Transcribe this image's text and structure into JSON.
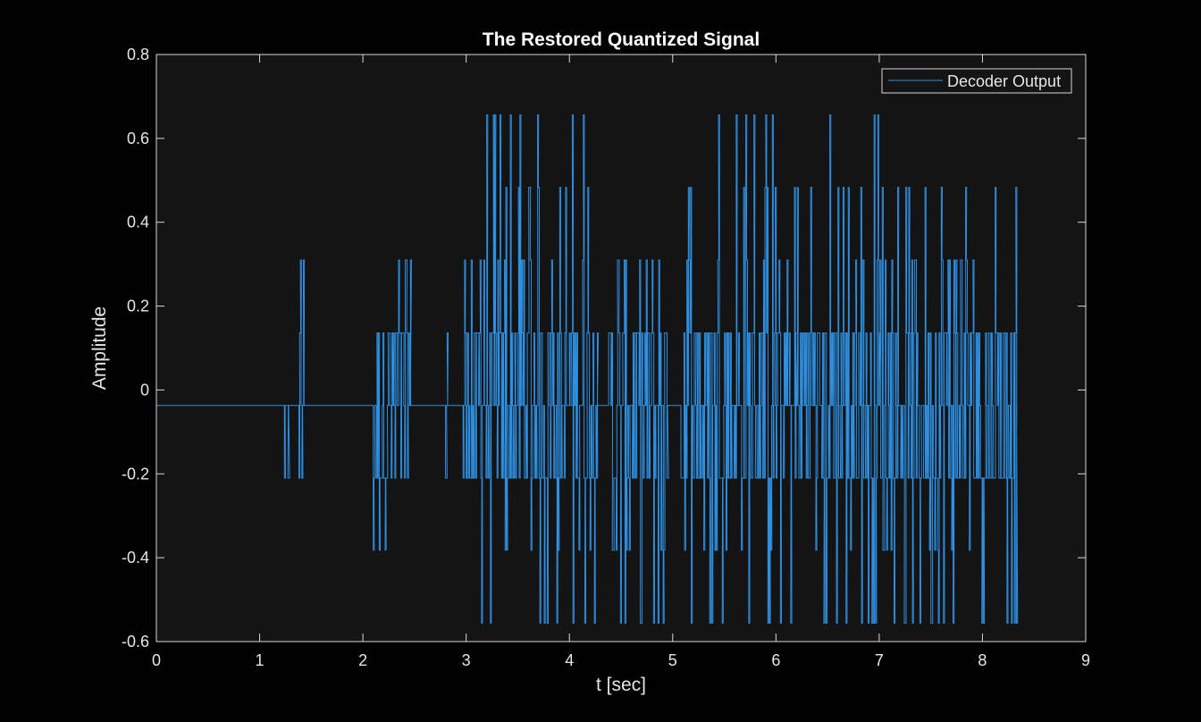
{
  "chart_data": {
    "type": "line",
    "title": "The Restored Quantized Signal",
    "xlabel": "t [sec]",
    "ylabel": "Amplitude",
    "xlim": [
      0,
      9
    ],
    "ylim": [
      -0.6,
      0.8
    ],
    "xticks": [
      0,
      1,
      2,
      3,
      4,
      5,
      6,
      7,
      8,
      9
    ],
    "xtick_labels": [
      "0",
      "1",
      "2",
      "3",
      "4",
      "5",
      "6",
      "7",
      "8",
      "9"
    ],
    "yticks": [
      -0.6,
      -0.4,
      -0.2,
      0,
      0.2,
      0.4,
      0.6,
      0.8
    ],
    "ytick_labels": [
      "-0.6",
      "-0.4",
      "-0.2",
      "0",
      "0.2",
      "0.4",
      "0.6",
      "0.8"
    ],
    "grid": false,
    "legend_position": "top-right",
    "colors": {
      "background": "#000000",
      "axes_background": "#141414",
      "axes_edge": "#d9d9d9",
      "series": "#2f8fe0"
    },
    "series": [
      {
        "name": "Decoder Output",
        "baseline": -0.037,
        "quantization_levels": [
          -0.556,
          -0.382,
          -0.21,
          -0.037,
          0.136,
          0.31,
          0.483,
          0.656
        ],
        "bursts": [
          {
            "t_start": 1.24,
            "t_end": 1.28,
            "min": -0.21,
            "max": -0.037
          },
          {
            "t_start": 1.38,
            "t_end": 1.43,
            "min": -0.382,
            "max": 0.31
          },
          {
            "t_start": 2.1,
            "t_end": 2.46,
            "min": -0.382,
            "max": 0.31
          },
          {
            "t_start": 2.8,
            "t_end": 2.82,
            "min": -0.21,
            "max": 0.136
          },
          {
            "t_start": 2.97,
            "t_end": 4.27,
            "min": -0.556,
            "max": 0.656
          },
          {
            "t_start": 4.38,
            "t_end": 4.95,
            "min": -0.556,
            "max": 0.31
          },
          {
            "t_start": 5.08,
            "t_end": 6.2,
            "min": -0.556,
            "max": 0.656
          },
          {
            "t_start": 6.2,
            "t_end": 7.0,
            "min": -0.556,
            "max": 0.656
          },
          {
            "t_start": 7.0,
            "t_end": 8.33,
            "min": -0.556,
            "max": 0.483
          }
        ]
      }
    ]
  }
}
